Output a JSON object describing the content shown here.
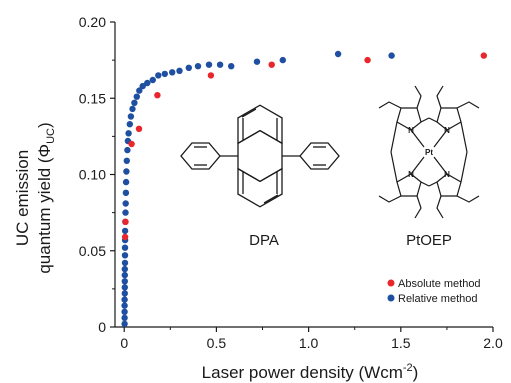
{
  "chart_data": {
    "type": "scatter",
    "xlabel_main": "Laser power density (Wcm",
    "xlabel_sup": "-2",
    "xlabel_end": ")",
    "ylabel_line1": "UC emission",
    "ylabel_line2_pre": "quantum yield (Φ",
    "ylabel_line2_sub": "UC",
    "ylabel_line2_end": ")",
    "xlim": [
      -0.05,
      2.0
    ],
    "ylim": [
      0,
      0.2
    ],
    "x_ticks": [
      0,
      0.5,
      1.0,
      1.5,
      2.0
    ],
    "x_tick_labels": [
      "0",
      "0.5",
      "1.0",
      "1.5",
      "2.0"
    ],
    "y_ticks": [
      0,
      0.05,
      0.1,
      0.15,
      0.2
    ],
    "y_tick_labels": [
      "0",
      "0.05",
      "0.10",
      "0.15",
      "0.20"
    ],
    "legend_position": "bottom-right",
    "series": [
      {
        "name": "Absolute method",
        "color": "#e8262b",
        "points": [
          [
            0.005,
            0.059
          ],
          [
            0.007,
            0.069
          ],
          [
            0.04,
            0.12
          ],
          [
            0.08,
            0.13
          ],
          [
            0.18,
            0.152
          ],
          [
            0.47,
            0.165
          ],
          [
            0.8,
            0.172
          ],
          [
            1.32,
            0.175
          ],
          [
            1.95,
            0.178
          ]
        ]
      },
      {
        "name": "Relative method",
        "color": "#1f4fa0",
        "points": [
          [
            0.002,
            0.002
          ],
          [
            0.002,
            0.006
          ],
          [
            0.002,
            0.01
          ],
          [
            0.002,
            0.014
          ],
          [
            0.002,
            0.018
          ],
          [
            0.003,
            0.022
          ],
          [
            0.003,
            0.026
          ],
          [
            0.003,
            0.03
          ],
          [
            0.003,
            0.034
          ],
          [
            0.003,
            0.038
          ],
          [
            0.004,
            0.042
          ],
          [
            0.004,
            0.047
          ],
          [
            0.004,
            0.052
          ],
          [
            0.005,
            0.057
          ],
          [
            0.005,
            0.063
          ],
          [
            0.006,
            0.069
          ],
          [
            0.007,
            0.075
          ],
          [
            0.008,
            0.081
          ],
          [
            0.009,
            0.088
          ],
          [
            0.01,
            0.095
          ],
          [
            0.012,
            0.102
          ],
          [
            0.014,
            0.109
          ],
          [
            0.017,
            0.116
          ],
          [
            0.02,
            0.122
          ],
          [
            0.024,
            0.127
          ],
          [
            0.03,
            0.133
          ],
          [
            0.036,
            0.138
          ],
          [
            0.045,
            0.143
          ],
          [
            0.055,
            0.147
          ],
          [
            0.068,
            0.151
          ],
          [
            0.082,
            0.155
          ],
          [
            0.1,
            0.158
          ],
          [
            0.125,
            0.16
          ],
          [
            0.155,
            0.162
          ],
          [
            0.185,
            0.165
          ],
          [
            0.22,
            0.166
          ],
          [
            0.26,
            0.167
          ],
          [
            0.3,
            0.168
          ],
          [
            0.35,
            0.17
          ],
          [
            0.4,
            0.171
          ],
          [
            0.46,
            0.172
          ],
          [
            0.52,
            0.172
          ],
          [
            0.58,
            0.171
          ],
          [
            0.72,
            0.174
          ],
          [
            0.86,
            0.175
          ],
          [
            1.16,
            0.179
          ],
          [
            1.45,
            0.178
          ]
        ]
      }
    ]
  },
  "inset": {
    "dpa_label": "DPA",
    "ptoep_label": "PtOEP",
    "atom_labels": [
      "N",
      "N",
      "N",
      "N",
      "Pt"
    ]
  }
}
